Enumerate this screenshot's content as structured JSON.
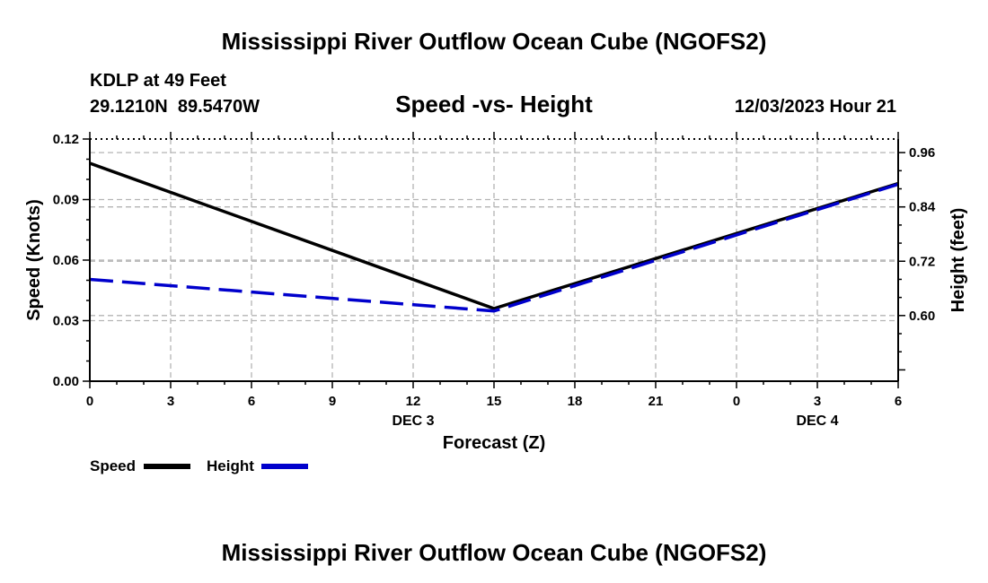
{
  "chart_data": {
    "type": "line",
    "title": "Mississippi River Outflow Ocean Cube (NGOFS2)",
    "station": "KDLP at 49 Feet",
    "coordinates": "29.1210N  89.5470W",
    "subtitle": "Speed -vs- Height",
    "valid_time": "12/03/2023 Hour 21",
    "xlabel": "Forecast (Z)",
    "ylabel_left": "Speed (Knots)",
    "ylabel_right": "Height (feet)",
    "x_hours": [
      0,
      15,
      30
    ],
    "x_tick_hours": [
      0,
      3,
      6,
      9,
      12,
      15,
      18,
      21,
      24,
      27,
      30
    ],
    "x_tick_labels": [
      "0",
      "3",
      "6",
      "9",
      "12",
      "15",
      "18",
      "21",
      "0",
      "3",
      "6"
    ],
    "date_labels": [
      {
        "hour": 12,
        "label": "DEC 3"
      },
      {
        "hour": 27,
        "label": "DEC 4"
      }
    ],
    "ylim_left": [
      0.0,
      0.12
    ],
    "y_left_ticks": [
      "0.00",
      "0.03",
      "0.06",
      "0.09",
      "0.12"
    ],
    "ylim_right": [
      0.455,
      0.99
    ],
    "y_right_ticks": [
      "0.60",
      "0.72",
      "0.84",
      "0.96"
    ],
    "grid": true,
    "series": [
      {
        "name": "Speed",
        "axis": "left",
        "color": "#000000",
        "dash": false,
        "values": [
          0.108,
          0.036,
          0.098
        ]
      },
      {
        "name": "Height",
        "axis": "right",
        "color": "#0000cc",
        "dash": true,
        "values": [
          0.68,
          0.61,
          0.89
        ]
      }
    ],
    "legend": [
      "Speed",
      "Height"
    ]
  },
  "footer_title": "Mississippi River Outflow Ocean Cube (NGOFS2)"
}
